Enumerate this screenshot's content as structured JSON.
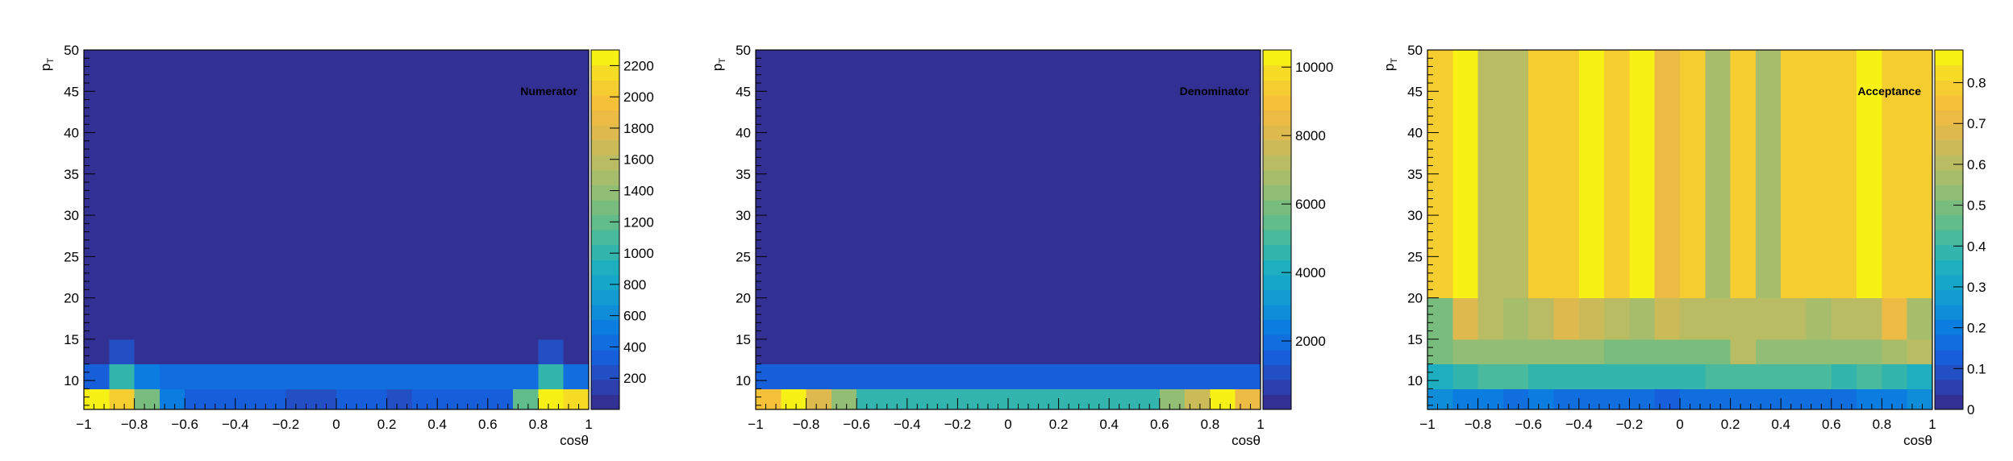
{
  "chart_data": [
    {
      "type": "heatmap",
      "annotation": "Numerator",
      "xlabel": "cosθ",
      "ylabel_main": "p",
      "ylabel_sub": "T",
      "x_edges": [
        -1,
        -0.9,
        -0.8,
        -0.7,
        -0.6,
        -0.5,
        -0.4,
        -0.3,
        -0.2,
        -0.1,
        0,
        0.1,
        0.2,
        0.3,
        0.4,
        0.5,
        0.6,
        0.7,
        0.8,
        0.9,
        1
      ],
      "y_edges": [
        6.5,
        9,
        12,
        15,
        20,
        50
      ],
      "xlim": [
        -1,
        1
      ],
      "ylim": [
        6.5,
        50
      ],
      "x_ticks": [
        -1,
        -0.8,
        -0.6,
        -0.4,
        -0.2,
        0,
        0.2,
        0.4,
        0.6,
        0.8,
        1
      ],
      "x_tick_labels": [
        "−1",
        "−0.8",
        "−0.6",
        "−0.4",
        "−0.2",
        "0",
        "0.2",
        "0.4",
        "0.6",
        "0.8",
        "1"
      ],
      "y_ticks": [
        10,
        15,
        20,
        25,
        30,
        35,
        40,
        45,
        50
      ],
      "y_tick_labels": [
        "10",
        "15",
        "20",
        "25",
        "30",
        "35",
        "40",
        "45",
        "50"
      ],
      "z_range": [
        0,
        2300
      ],
      "z_ticks": [
        200,
        400,
        600,
        800,
        1000,
        1200,
        1400,
        1600,
        1800,
        2000,
        2200
      ],
      "z_tick_labels": [
        "200",
        "400",
        "600",
        "800",
        "1000",
        "1200",
        "1400",
        "1600",
        "1800",
        "2000",
        "2200"
      ],
      "values": [
        [
          2250,
          2100,
          1250,
          550,
          350,
          300,
          300,
          300,
          200,
          200,
          350,
          300,
          200,
          300,
          300,
          300,
          300,
          1200,
          2300,
          2200
        ],
        [
          350,
          1050,
          550,
          400,
          400,
          400,
          400,
          400,
          400,
          400,
          400,
          400,
          400,
          400,
          400,
          400,
          400,
          450,
          1050,
          400
        ],
        [
          5,
          200,
          5,
          5,
          5,
          5,
          5,
          5,
          5,
          5,
          5,
          5,
          5,
          5,
          5,
          5,
          5,
          5,
          200,
          5
        ],
        [
          5,
          5,
          5,
          5,
          5,
          5,
          5,
          5,
          5,
          5,
          5,
          5,
          5,
          5,
          5,
          5,
          5,
          5,
          5,
          5
        ],
        [
          5,
          5,
          5,
          5,
          5,
          5,
          5,
          5,
          5,
          5,
          5,
          5,
          5,
          5,
          5,
          5,
          5,
          5,
          5,
          5
        ]
      ]
    },
    {
      "type": "heatmap",
      "annotation": "Denominator",
      "xlabel": "cosθ",
      "ylabel_main": "p",
      "ylabel_sub": "T",
      "x_edges": [
        -1,
        -0.9,
        -0.8,
        -0.7,
        -0.6,
        -0.5,
        -0.4,
        -0.3,
        -0.2,
        -0.1,
        0,
        0.1,
        0.2,
        0.3,
        0.4,
        0.5,
        0.6,
        0.7,
        0.8,
        0.9,
        1
      ],
      "y_edges": [
        6.5,
        9,
        12,
        15,
        20,
        50
      ],
      "xlim": [
        -1,
        1
      ],
      "ylim": [
        6.5,
        50
      ],
      "x_ticks": [
        -1,
        -0.8,
        -0.6,
        -0.4,
        -0.2,
        0,
        0.2,
        0.4,
        0.6,
        0.8,
        1
      ],
      "x_tick_labels": [
        "−1",
        "−0.8",
        "−0.6",
        "−0.4",
        "−0.2",
        "0",
        "0.2",
        "0.4",
        "0.6",
        "0.8",
        "1"
      ],
      "y_ticks": [
        10,
        15,
        20,
        25,
        30,
        35,
        40,
        45,
        50
      ],
      "y_tick_labels": [
        "10",
        "15",
        "20",
        "25",
        "30",
        "35",
        "40",
        "45",
        "50"
      ],
      "z_range": [
        0,
        10500
      ],
      "z_ticks": [
        2000,
        4000,
        6000,
        8000,
        10000
      ],
      "z_tick_labels": [
        "2000",
        "4000",
        "6000",
        "8000",
        "10000"
      ],
      "values": [
        [
          8800,
          10300,
          7900,
          6300,
          4800,
          4600,
          4500,
          4400,
          4400,
          4400,
          4400,
          4400,
          4400,
          4400,
          4400,
          4600,
          6400,
          7700,
          10200,
          8700
        ],
        [
          1600,
          1500,
          1500,
          1400,
          1400,
          1400,
          1400,
          1400,
          1400,
          1400,
          1400,
          1400,
          1400,
          1400,
          1400,
          1400,
          1400,
          1400,
          1500,
          1500
        ],
        [
          50,
          50,
          50,
          50,
          50,
          50,
          50,
          50,
          50,
          50,
          50,
          50,
          50,
          50,
          50,
          50,
          50,
          50,
          50,
          50
        ],
        [
          50,
          50,
          50,
          50,
          50,
          50,
          50,
          50,
          50,
          50,
          50,
          50,
          50,
          50,
          50,
          50,
          50,
          50,
          50,
          50
        ],
        [
          50,
          50,
          50,
          50,
          50,
          50,
          50,
          50,
          50,
          50,
          50,
          50,
          50,
          50,
          50,
          50,
          50,
          50,
          50,
          50
        ]
      ]
    },
    {
      "type": "heatmap",
      "annotation": "Acceptance",
      "xlabel": "cosθ",
      "ylabel_main": "p",
      "ylabel_sub": "T",
      "x_edges": [
        -1,
        -0.9,
        -0.8,
        -0.7,
        -0.6,
        -0.5,
        -0.4,
        -0.3,
        -0.2,
        -0.1,
        0,
        0.1,
        0.2,
        0.3,
        0.4,
        0.5,
        0.6,
        0.7,
        0.8,
        0.9,
        1
      ],
      "y_edges": [
        6.5,
        9,
        12,
        15,
        20,
        50
      ],
      "xlim": [
        -1,
        1
      ],
      "ylim": [
        6.5,
        50
      ],
      "x_ticks": [
        -1,
        -0.8,
        -0.6,
        -0.4,
        -0.2,
        0,
        0.2,
        0.4,
        0.6,
        0.8,
        1
      ],
      "x_tick_labels": [
        "−1",
        "−0.8",
        "−0.6",
        "−0.4",
        "−0.2",
        "0",
        "0.2",
        "0.4",
        "0.6",
        "0.8",
        "1"
      ],
      "y_ticks": [
        10,
        15,
        20,
        25,
        30,
        35,
        40,
        45,
        50
      ],
      "y_tick_labels": [
        "10",
        "15",
        "20",
        "25",
        "30",
        "35",
        "40",
        "45",
        "50"
      ],
      "z_range": [
        0,
        0.88
      ],
      "z_ticks": [
        0,
        0.1,
        0.2,
        0.3,
        0.4,
        0.5,
        0.6,
        0.7,
        0.8
      ],
      "z_tick_labels": [
        "0",
        "0.1",
        "0.2",
        "0.3",
        "0.4",
        "0.5",
        "0.6",
        "0.7",
        "0.8"
      ],
      "values": [
        [
          0.22,
          0.19,
          0.2,
          0.16,
          0.19,
          0.18,
          0.18,
          0.17,
          0.18,
          0.14,
          0.17,
          0.17,
          0.15,
          0.18,
          0.17,
          0.17,
          0.17,
          0.19,
          0.2,
          0.22
        ],
        [
          0.35,
          0.38,
          0.42,
          0.41,
          0.4,
          0.39,
          0.38,
          0.39,
          0.4,
          0.39,
          0.4,
          0.41,
          0.42,
          0.42,
          0.41,
          0.41,
          0.4,
          0.41,
          0.38,
          0.33
        ],
        [
          0.5,
          0.52,
          0.52,
          0.52,
          0.52,
          0.52,
          0.52,
          0.5,
          0.5,
          0.5,
          0.5,
          0.48,
          0.6,
          0.52,
          0.52,
          0.52,
          0.52,
          0.52,
          0.55,
          0.6
        ],
        [
          0.5,
          0.68,
          0.62,
          0.55,
          0.62,
          0.68,
          0.65,
          0.62,
          0.55,
          0.65,
          0.62,
          0.62,
          0.62,
          0.62,
          0.6,
          0.58,
          0.62,
          0.62,
          0.72,
          0.55
        ],
        [
          0.78,
          0.86,
          0.62,
          0.62,
          0.8,
          0.78,
          0.86,
          0.8,
          0.86,
          0.72,
          0.8,
          0.55,
          0.8,
          0.55,
          0.8,
          0.78,
          0.78,
          0.86,
          0.8,
          0.8
        ]
      ]
    }
  ]
}
